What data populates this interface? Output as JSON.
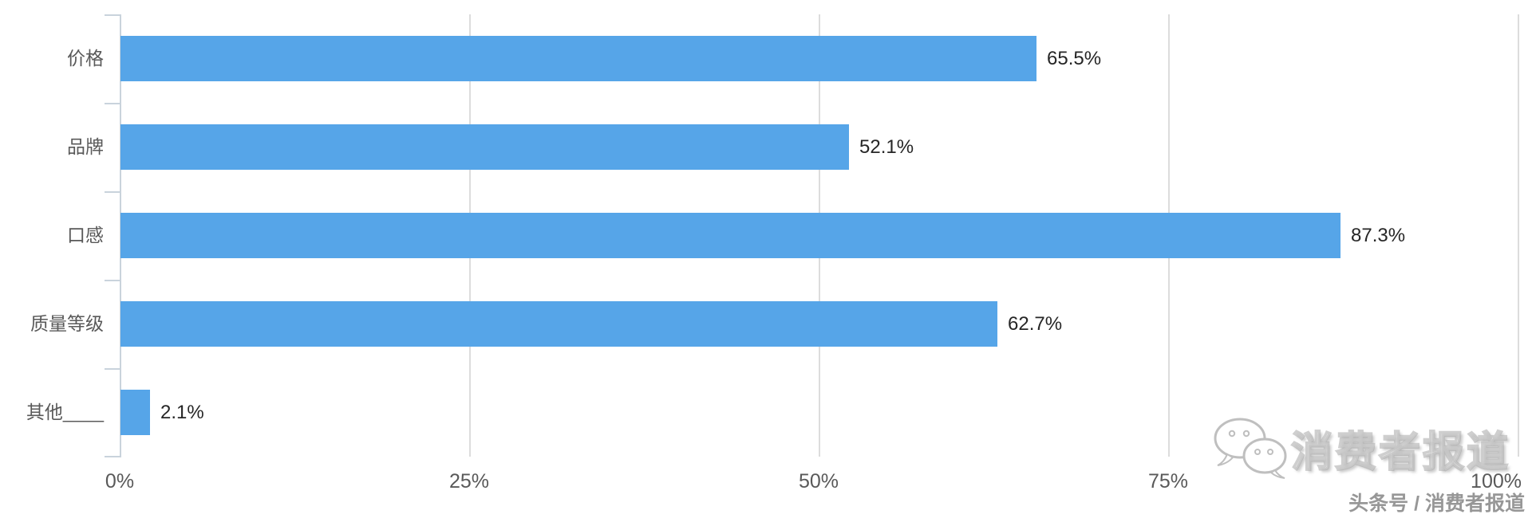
{
  "chart_data": {
    "type": "bar",
    "orientation": "horizontal",
    "title": "",
    "xlabel": "",
    "ylabel": "",
    "categories": [
      "价格",
      "品牌",
      "口感",
      "质量等级",
      "其他____"
    ],
    "values": [
      65.5,
      52.1,
      87.3,
      62.7,
      2.1
    ],
    "value_labels": [
      "65.5%",
      "52.1%",
      "87.3%",
      "62.7%",
      "2.1%"
    ],
    "xlim": [
      0,
      100
    ],
    "x_ticks": [
      {
        "value": 0,
        "label": "0%"
      },
      {
        "value": 25,
        "label": "25%"
      },
      {
        "value": 50,
        "label": "50%"
      },
      {
        "value": 75,
        "label": "75%"
      },
      {
        "value": 100,
        "label": "100%"
      }
    ],
    "grid": true,
    "legend": null,
    "bar_color": "#56a5e8"
  },
  "colors": {
    "bar": "#56a5e8",
    "gridline": "#dcdcdc",
    "axis": "#c9d3dc",
    "category_text": "#595959",
    "value_text": "#262626"
  },
  "watermark": {
    "icon": "wechat-icon",
    "brand": "消费者报道",
    "source_line": "头条号 / 消费者报道"
  }
}
